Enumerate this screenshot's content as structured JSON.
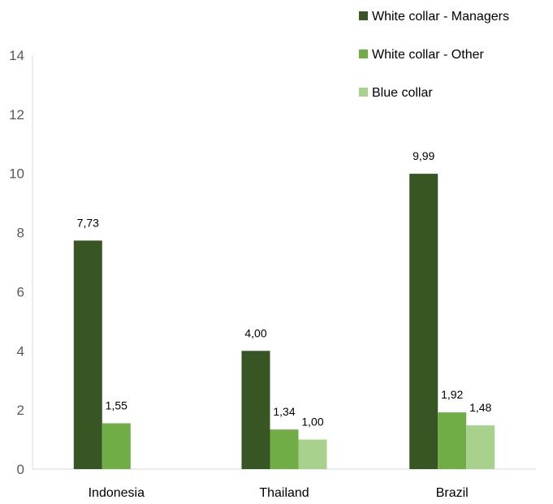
{
  "chart_data": {
    "type": "bar",
    "categories": [
      "Indonesia",
      "Thailand",
      "Brazil"
    ],
    "series": [
      {
        "name": "White collar - Managers",
        "values": [
          7.73,
          4.0,
          9.99
        ],
        "labels": [
          "7,73",
          "4,00",
          "9,99"
        ],
        "color": "#375623"
      },
      {
        "name": "White collar - Other",
        "values": [
          1.55,
          1.34,
          1.92
        ],
        "labels": [
          "1,55",
          "1,34",
          "1,92"
        ],
        "color": "#70ad47"
      },
      {
        "name": "Blue collar",
        "values": [
          null,
          1.0,
          1.48
        ],
        "labels": [
          "",
          "1,00",
          "1,48"
        ],
        "color": "#a9d18e"
      }
    ],
    "yticks": [
      "0",
      "2",
      "4",
      "6",
      "8",
      "10",
      "12",
      "14"
    ],
    "ylim": [
      0,
      14
    ],
    "grid": false,
    "legend_position": "top-right",
    "title": "",
    "xlabel": "",
    "ylabel": ""
  }
}
